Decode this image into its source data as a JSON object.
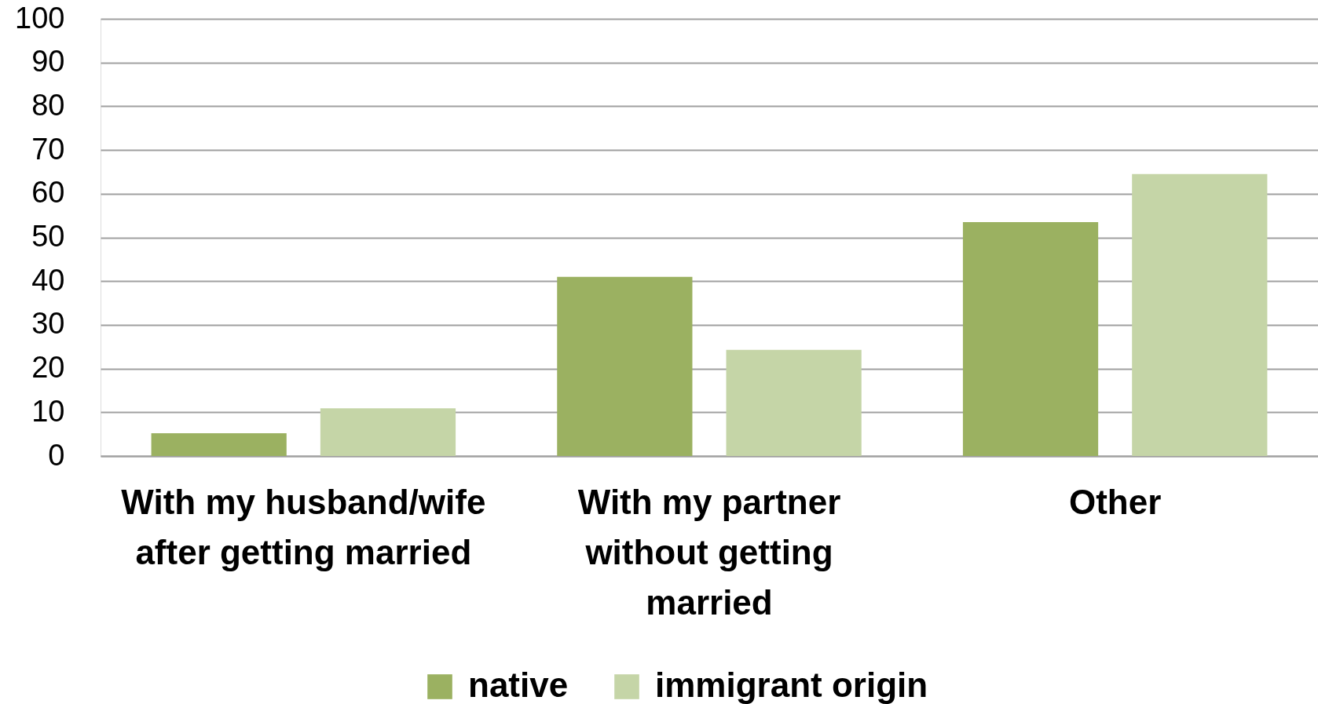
{
  "chart_data": {
    "type": "bar",
    "categories": [
      "With my husband/wife after getting married",
      "With my partner without getting married",
      "Other"
    ],
    "series": [
      {
        "name": "native",
        "color": "#9bb161",
        "values": [
          5.2,
          41,
          53.5
        ]
      },
      {
        "name": "immigrant origin",
        "color": "#c5d5a7",
        "values": [
          10.9,
          24.3,
          64.5
        ]
      }
    ],
    "ylim": [
      0,
      100
    ],
    "yticks": [
      0,
      10,
      20,
      30,
      40,
      50,
      60,
      70,
      80,
      90,
      100
    ],
    "grid": "y",
    "legend": "bottom"
  }
}
